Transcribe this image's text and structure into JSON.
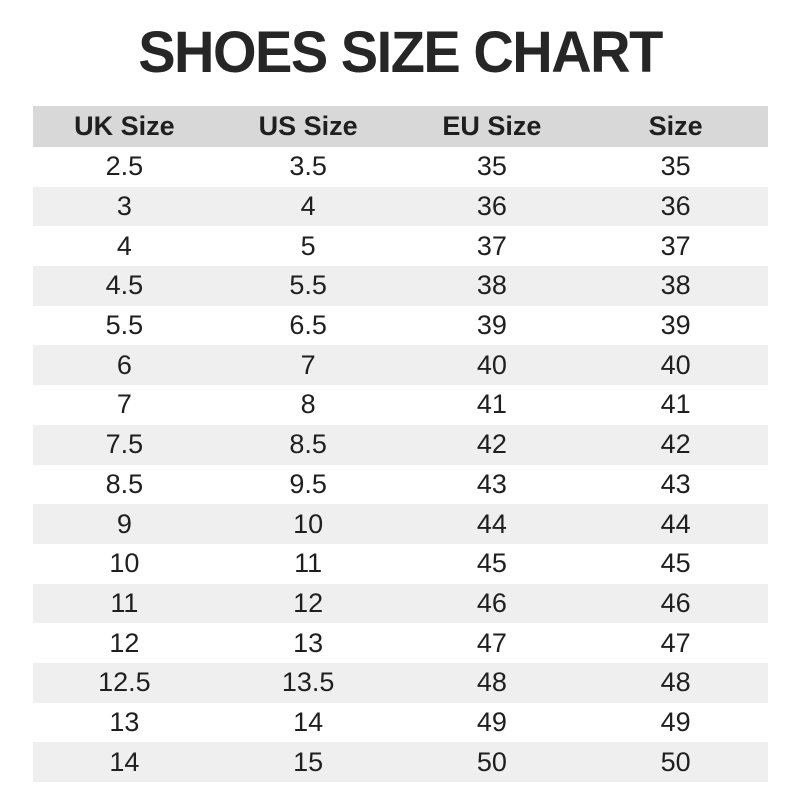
{
  "title": "SHOES SIZE CHART",
  "chart_data": {
    "type": "table",
    "title": "SHOES SIZE CHART",
    "columns": [
      "UK Size",
      "US Size",
      "EU Size",
      "Size"
    ],
    "rows": [
      [
        "2.5",
        "3.5",
        "35",
        "35"
      ],
      [
        "3",
        "4",
        "36",
        "36"
      ],
      [
        "4",
        "5",
        "37",
        "37"
      ],
      [
        "4.5",
        "5.5",
        "38",
        "38"
      ],
      [
        "5.5",
        "6.5",
        "39",
        "39"
      ],
      [
        "6",
        "7",
        "40",
        "40"
      ],
      [
        "7",
        "8",
        "41",
        "41"
      ],
      [
        "7.5",
        "8.5",
        "42",
        "42"
      ],
      [
        "8.5",
        "9.5",
        "43",
        "43"
      ],
      [
        "9",
        "10",
        "44",
        "44"
      ],
      [
        "10",
        "11",
        "45",
        "45"
      ],
      [
        "11",
        "12",
        "46",
        "46"
      ],
      [
        "12",
        "13",
        "47",
        "47"
      ],
      [
        "12.5",
        "13.5",
        "48",
        "48"
      ],
      [
        "13",
        "14",
        "49",
        "49"
      ],
      [
        "14",
        "15",
        "50",
        "50"
      ]
    ],
    "layout": {
      "striped_rows": true,
      "stripe_pattern": "even rows shaded"
    }
  },
  "colors": {
    "header_bg": "#d8d8d8",
    "row_alt_bg": "#efefef",
    "text": "#1f1f1f",
    "title": "#262626",
    "page_bg": "#ffffff"
  }
}
